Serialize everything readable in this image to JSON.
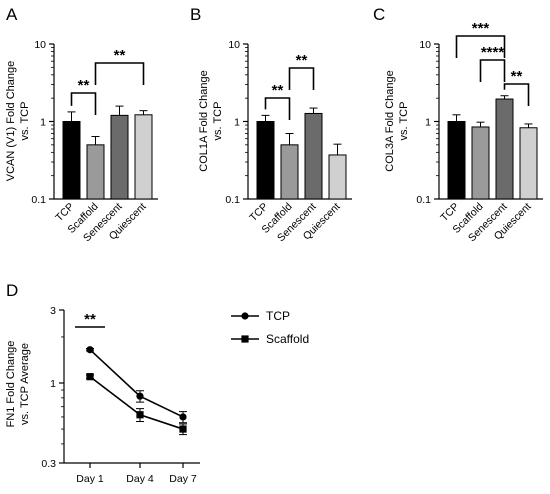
{
  "figure": {
    "panels": {
      "A": {
        "letter": "A",
        "ylabel_line1": "VCAN (V1) Fold Change",
        "ylabel_line2": "vs. TCP"
      },
      "B": {
        "letter": "B",
        "ylabel_line1": "COL1A Fold Change",
        "ylabel_line2": "vs. TCP"
      },
      "C": {
        "letter": "C",
        "ylabel_line1": "COL3A Fold Change",
        "ylabel_line2": "vs. TCP"
      },
      "D": {
        "letter": "D",
        "ylabel_line1": "FN1 Fold Change",
        "ylabel_line2": "vs. TCP Average"
      }
    }
  },
  "chart_data": [
    {
      "panel": "A",
      "type": "bar",
      "title": "",
      "ylabel": "VCAN (V1) Fold Change vs. TCP",
      "yscale": "log",
      "ylim": [
        0.1,
        10
      ],
      "yticks": [
        "0.1",
        "1",
        "10"
      ],
      "categories": [
        "TCP",
        "Scaffold",
        "Senescent",
        "Quiescent"
      ],
      "values": [
        1.0,
        0.5,
        1.2,
        1.22
      ],
      "errors": [
        0.33,
        0.14,
        0.38,
        0.16
      ],
      "bar_colors": [
        "#000000",
        "#9a9a9a",
        "#6b6b6b",
        "#d0d0d0"
      ],
      "significance": [
        {
          "from": "TCP",
          "to": "Scaffold",
          "label": "**"
        },
        {
          "from": "Scaffold",
          "to": "Quiescent",
          "label": "**"
        }
      ]
    },
    {
      "panel": "B",
      "type": "bar",
      "title": "",
      "ylabel": "COL1A Fold Change vs. TCP",
      "yscale": "log",
      "ylim": [
        0.1,
        10
      ],
      "yticks": [
        "0.1",
        "1",
        "10"
      ],
      "categories": [
        "TCP",
        "Scaffold",
        "Senescent",
        "Quiescent"
      ],
      "values": [
        1.0,
        0.5,
        1.27,
        0.37
      ],
      "errors": [
        0.2,
        0.2,
        0.22,
        0.14
      ],
      "bar_colors": [
        "#000000",
        "#9a9a9a",
        "#6b6b6b",
        "#d0d0d0"
      ],
      "significance": [
        {
          "from": "TCP",
          "to": "Scaffold",
          "label": "**"
        },
        {
          "from": "Scaffold",
          "to": "Senescent",
          "label": "**"
        }
      ]
    },
    {
      "panel": "C",
      "type": "bar",
      "title": "",
      "ylabel": "COL3A Fold Change vs. TCP",
      "yscale": "log",
      "ylim": [
        0.1,
        10
      ],
      "yticks": [
        "0.1",
        "1",
        "10"
      ],
      "categories": [
        "TCP",
        "Scaffold",
        "Senescent",
        "Quiescent"
      ],
      "values": [
        1.0,
        0.85,
        1.95,
        0.83
      ],
      "errors": [
        0.22,
        0.13,
        0.2,
        0.1
      ],
      "bar_colors": [
        "#000000",
        "#9a9a9a",
        "#6b6b6b",
        "#d0d0d0"
      ],
      "significance": [
        {
          "from": "TCP",
          "to": "Senescent",
          "label": "***"
        },
        {
          "from": "Scaffold",
          "to": "Senescent",
          "label": "****"
        },
        {
          "from": "Senescent",
          "to": "Quiescent",
          "label": "**"
        }
      ]
    },
    {
      "panel": "D",
      "type": "line",
      "title": "",
      "ylabel": "FN1 Fold Change vs. TCP Average",
      "yscale": "log",
      "ylim": [
        0.3,
        3
      ],
      "yticks": [
        "0.3",
        "1",
        "3"
      ],
      "categories": [
        "Day 1",
        "Day 4",
        "Day 7"
      ],
      "series": [
        {
          "name": "TCP",
          "marker": "circle",
          "values": [
            1.65,
            0.82,
            0.6
          ],
          "errors": [
            0.03,
            0.07,
            0.05
          ]
        },
        {
          "name": "Scaffold",
          "marker": "square",
          "values": [
            1.1,
            0.62,
            0.5
          ],
          "errors": [
            0.03,
            0.06,
            0.04
          ]
        }
      ],
      "significance": [
        {
          "from": "Day 1",
          "to": "Day 1",
          "label": "**"
        }
      ],
      "legend": "right"
    }
  ]
}
